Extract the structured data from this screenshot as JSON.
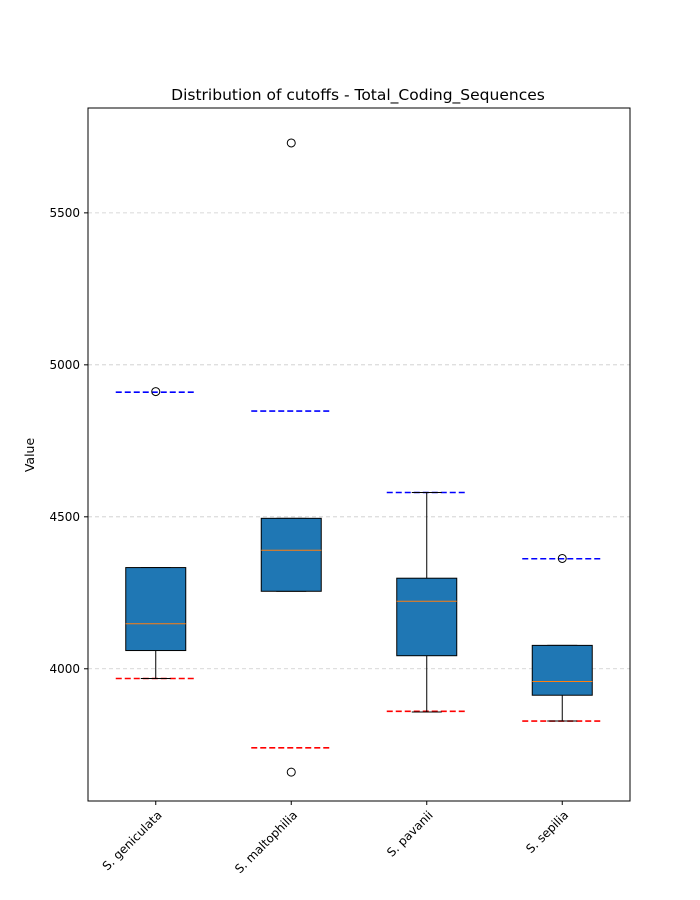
{
  "chart_data": {
    "type": "box",
    "title": "Distribution of cutoffs - Total_Coding_Sequences",
    "xlabel": "",
    "ylabel": "Value",
    "ylim": [
      3565,
      5845
    ],
    "yticks": [
      4000,
      4500,
      5000,
      5500
    ],
    "grid": "horizontal dashed",
    "categories": [
      "S. geniculata",
      "S. maltophilia",
      "S. pavanii",
      "S. sepilia"
    ],
    "boxes": [
      {
        "category": "S. geniculata",
        "q1": 4060,
        "median": 4148,
        "q3": 4333,
        "whisker_low": 3968,
        "whisker_high": 4333,
        "outliers": [
          4912
        ],
        "upper_cutoff": 4910,
        "lower_cutoff": 3968
      },
      {
        "category": "S. maltophilia",
        "q1": 4255,
        "median": 4390,
        "q3": 4495,
        "whisker_low": 4255,
        "whisker_high": 4495,
        "outliers": [
          5730,
          3660
        ],
        "upper_cutoff": 4848,
        "lower_cutoff": 3740
      },
      {
        "category": "S. pavanii",
        "q1": 4043,
        "median": 4222,
        "q3": 4298,
        "whisker_low": 3858,
        "whisker_high": 4580,
        "outliers": [],
        "upper_cutoff": 4580,
        "lower_cutoff": 3860
      },
      {
        "category": "S. sepilia",
        "q1": 3913,
        "median": 3958,
        "q3": 4077,
        "whisker_low": 3828,
        "whisker_high": 4077,
        "outliers": [
          4363
        ],
        "upper_cutoff": 4362,
        "lower_cutoff": 3828
      }
    ],
    "colors": {
      "box_fill": "#1f77b4",
      "median": "#ff7f0e",
      "upper_cutoff": "#0000ff",
      "lower_cutoff": "#ff0000",
      "grid": "#cccccc"
    }
  }
}
